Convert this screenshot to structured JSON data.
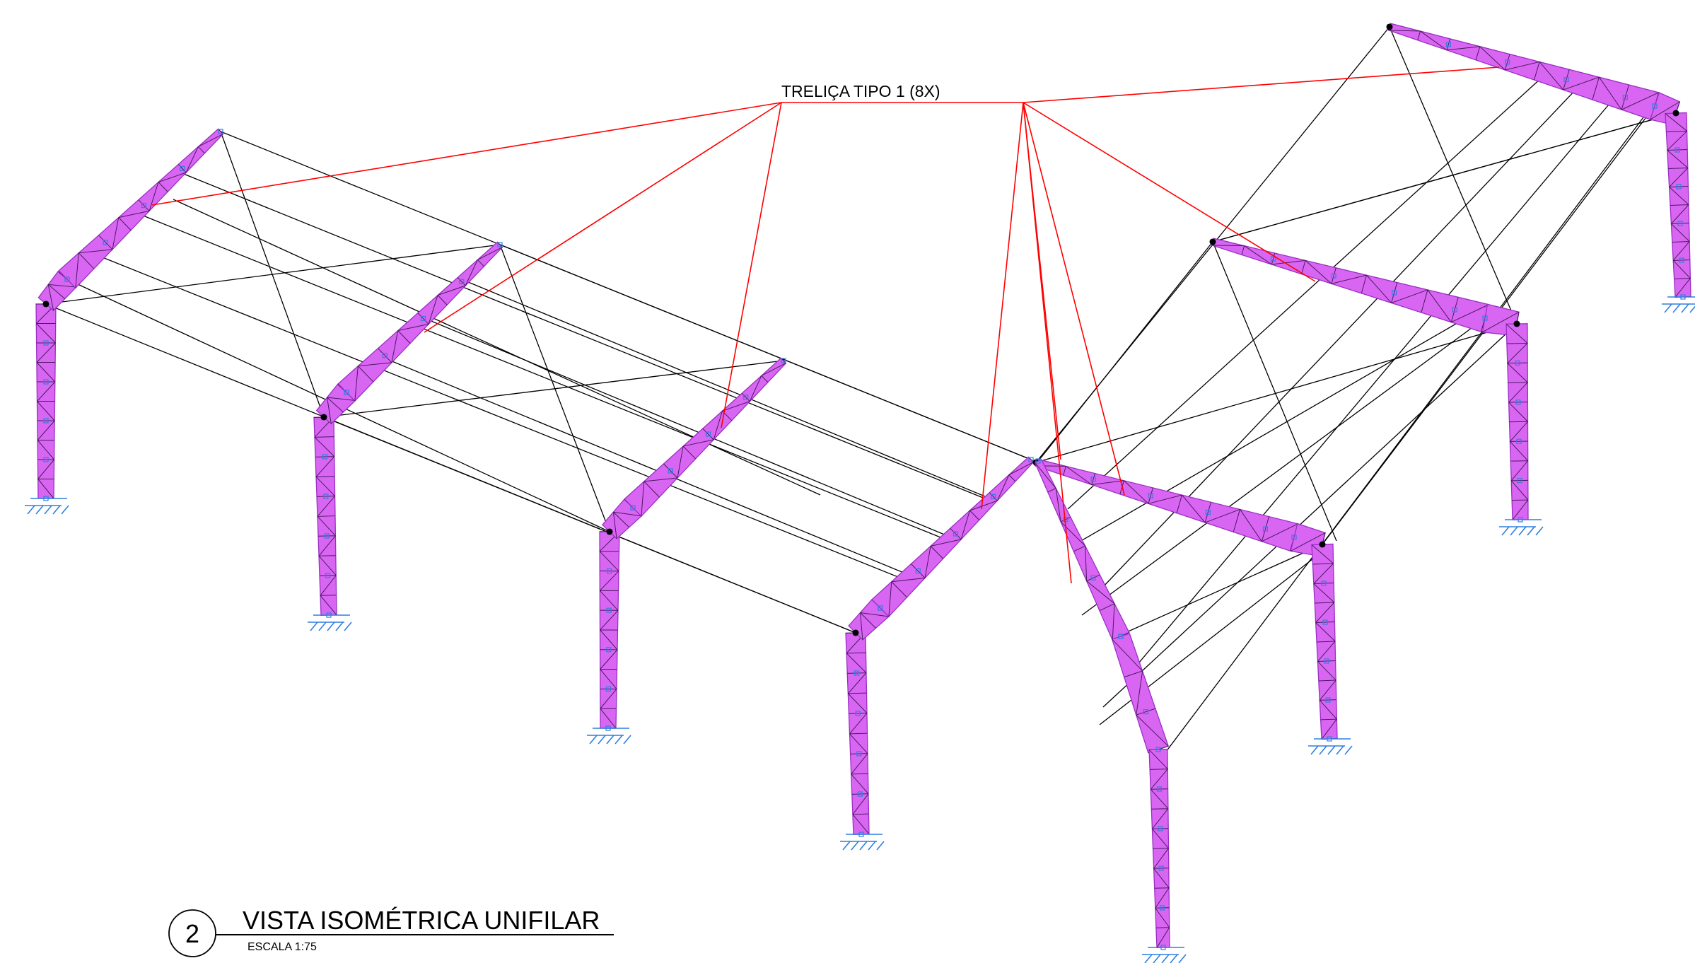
{
  "annotation": {
    "label": "TRELIÇA TIPO 1 (8X)"
  },
  "title_block": {
    "number": "2",
    "title": "VISTA ISOMÉTRICA UNIFILAR",
    "scale": "ESCALA 1:75"
  },
  "colors": {
    "truss_fill": "#d966f2",
    "truss_edge": "#9a2fc4",
    "member_line": "#000000",
    "leader_line": "#ff0000",
    "node_marker": "#2f7fe0",
    "support_symbol": "#2f7fe0"
  },
  "frame_count": 8
}
